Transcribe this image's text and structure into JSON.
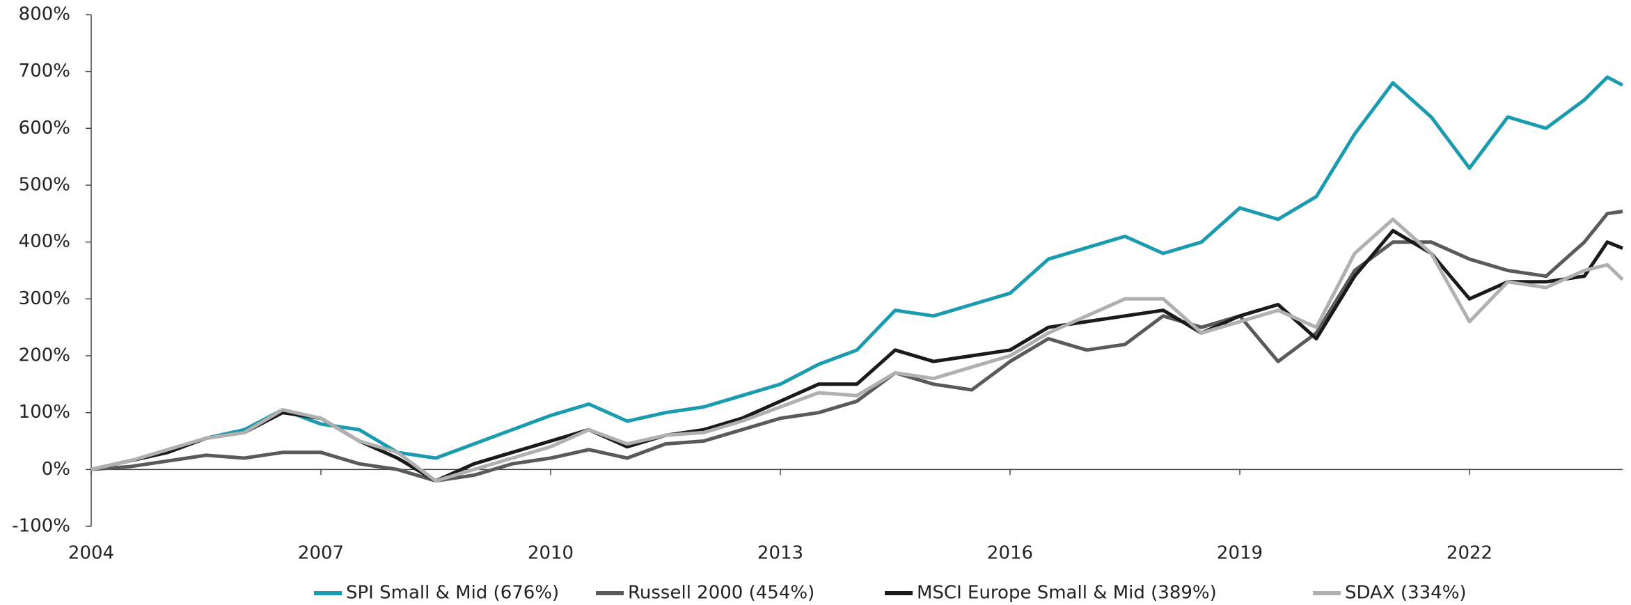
{
  "chart_data": {
    "type": "line",
    "x": [
      2004,
      2004.5,
      2005,
      2005.5,
      2006,
      2006.5,
      2007,
      2007.5,
      2008,
      2008.5,
      2009,
      2009.5,
      2010,
      2010.5,
      2011,
      2011.5,
      2012,
      2012.5,
      2013,
      2013.5,
      2014,
      2014.5,
      2015,
      2015.5,
      2016,
      2016.5,
      2017,
      2017.5,
      2018,
      2018.5,
      2019,
      2019.5,
      2020,
      2020.5,
      2021,
      2021.5,
      2022,
      2022.5,
      2023,
      2023.5,
      2023.8,
      2024
    ],
    "series": [
      {
        "name": "SPI Small & Mid (676%)",
        "color": "#1a9bb0",
        "values": [
          0,
          15,
          30,
          55,
          70,
          105,
          80,
          70,
          30,
          20,
          45,
          70,
          95,
          115,
          85,
          100,
          110,
          130,
          150,
          185,
          210,
          280,
          270,
          290,
          310,
          370,
          390,
          410,
          380,
          400,
          460,
          440,
          480,
          590,
          680,
          620,
          530,
          620,
          600,
          650,
          690,
          676
        ]
      },
      {
        "name": "Russell 2000 (454%)",
        "color": "#5a5a5a",
        "values": [
          0,
          5,
          15,
          25,
          20,
          30,
          30,
          10,
          0,
          -20,
          -10,
          10,
          20,
          35,
          20,
          45,
          50,
          70,
          90,
          100,
          120,
          170,
          150,
          140,
          190,
          230,
          210,
          220,
          270,
          250,
          270,
          190,
          240,
          350,
          400,
          400,
          370,
          350,
          340,
          400,
          450,
          454
        ]
      },
      {
        "name": "MSCI Europe Small & Mid (389%)",
        "color": "#1a1a1a",
        "values": [
          0,
          15,
          30,
          55,
          65,
          100,
          90,
          50,
          20,
          -20,
          10,
          30,
          50,
          70,
          40,
          60,
          70,
          90,
          120,
          150,
          150,
          210,
          190,
          200,
          210,
          250,
          260,
          270,
          280,
          240,
          270,
          290,
          230,
          340,
          420,
          380,
          300,
          330,
          330,
          340,
          400,
          389
        ]
      },
      {
        "name": "SDAX (334%)",
        "color": "#b0b0b0",
        "values": [
          0,
          15,
          35,
          55,
          65,
          105,
          90,
          50,
          30,
          -20,
          0,
          20,
          40,
          70,
          45,
          60,
          65,
          85,
          110,
          135,
          130,
          170,
          160,
          180,
          200,
          240,
          270,
          300,
          300,
          240,
          260,
          280,
          250,
          380,
          440,
          380,
          260,
          330,
          320,
          350,
          360,
          334
        ]
      }
    ],
    "xlim": [
      2004,
      2024
    ],
    "xticks": [
      2004,
      2007,
      2010,
      2013,
      2016,
      2019,
      2022
    ],
    "ylim": [
      -100,
      800
    ],
    "yticks": [
      {
        "value": -100,
        "label": "-100%"
      },
      {
        "value": 0,
        "label": "0%"
      },
      {
        "value": 100,
        "label": "100%"
      },
      {
        "value": 200,
        "label": "200%"
      },
      {
        "value": 300,
        "label": "300%"
      },
      {
        "value": 400,
        "label": "400%"
      },
      {
        "value": 500,
        "label": "500%"
      },
      {
        "value": 600,
        "label": "600%"
      },
      {
        "value": 700,
        "label": "700%"
      },
      {
        "value": 800,
        "label": "800%"
      }
    ]
  }
}
